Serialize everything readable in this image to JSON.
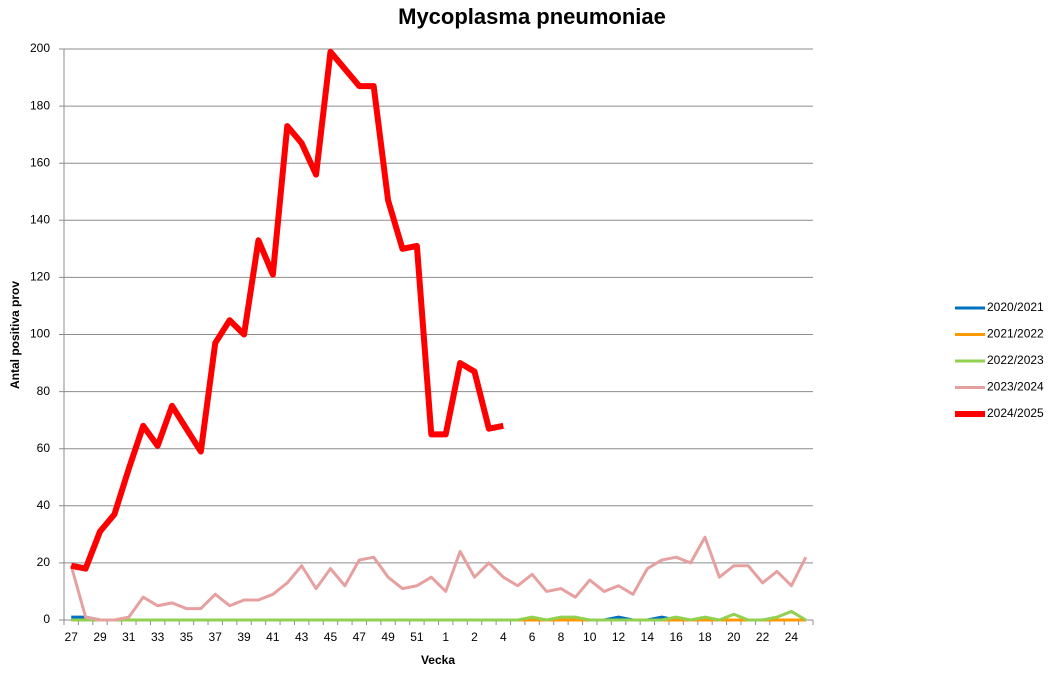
{
  "chart_data": {
    "type": "line",
    "title": "Mycoplasma pneumoniae",
    "x_label": "Vecka",
    "y_label": "Antal positiva prov",
    "categories": [
      27,
      null,
      29,
      null,
      31,
      null,
      33,
      null,
      35,
      null,
      37,
      null,
      39,
      null,
      41,
      null,
      43,
      null,
      45,
      null,
      47,
      null,
      49,
      null,
      51,
      null,
      1,
      null,
      2,
      null,
      4,
      null,
      6,
      null,
      8,
      null,
      10,
      null,
      12,
      null,
      14,
      null,
      16,
      null,
      18,
      null,
      20,
      null,
      22,
      null,
      24,
      null
    ],
    "ylim": [
      0,
      200
    ],
    "yticks": [
      0,
      20,
      40,
      60,
      80,
      100,
      120,
      140,
      160,
      180,
      200
    ],
    "grid": true,
    "legend": "right",
    "series": [
      {
        "name": "2020/2021",
        "color": "#0070c0",
        "width": 3,
        "values": [
          1,
          1,
          0,
          0,
          0,
          0,
          0,
          0,
          0,
          0,
          0,
          0,
          0,
          0,
          0,
          0,
          0,
          0,
          0,
          0,
          0,
          0,
          0,
          0,
          0,
          0,
          0,
          0,
          0,
          0,
          0,
          0,
          0,
          0,
          0,
          0,
          0,
          0,
          1,
          0,
          0,
          1,
          0,
          0,
          0,
          0,
          0,
          0,
          0,
          0,
          0,
          0
        ]
      },
      {
        "name": "2021/2022",
        "color": "#ff9900",
        "width": 3,
        "values": [
          0,
          0,
          0,
          0,
          0,
          0,
          0,
          0,
          0,
          0,
          0,
          0,
          0,
          0,
          0,
          0,
          0,
          0,
          0,
          0,
          0,
          0,
          0,
          0,
          0,
          0,
          0,
          0,
          0,
          0,
          0,
          0,
          0,
          0,
          0,
          0,
          0,
          0,
          0,
          0,
          0,
          0,
          0,
          0,
          0,
          0,
          0,
          0,
          0,
          0,
          0,
          0
        ]
      },
      {
        "name": "2022/2023",
        "color": "#92d050",
        "width": 3,
        "values": [
          0,
          0,
          0,
          0,
          0,
          0,
          0,
          0,
          0,
          0,
          0,
          0,
          0,
          0,
          0,
          0,
          0,
          0,
          0,
          0,
          0,
          0,
          0,
          0,
          0,
          0,
          0,
          0,
          0,
          0,
          0,
          0,
          1,
          0,
          1,
          1,
          0,
          0,
          0,
          0,
          0,
          0,
          1,
          0,
          1,
          0,
          2,
          0,
          0,
          1,
          3,
          0
        ]
      },
      {
        "name": "2023/2024",
        "color": "#e6a0a0",
        "width": 3,
        "values": [
          19,
          1,
          0,
          0,
          1,
          8,
          5,
          6,
          4,
          4,
          9,
          5,
          7,
          7,
          9,
          13,
          19,
          11,
          18,
          12,
          21,
          22,
          15,
          11,
          12,
          15,
          10,
          24,
          15,
          20,
          15,
          12,
          16,
          10,
          11,
          8,
          14,
          10,
          12,
          9,
          18,
          21,
          22,
          20,
          29,
          15,
          19,
          19,
          13,
          17,
          12,
          22
        ]
      },
      {
        "name": "2024/2025",
        "color": "#ff0000",
        "width": 6,
        "values": [
          19,
          18,
          31,
          37,
          53,
          68,
          61,
          75,
          67,
          59,
          97,
          105,
          100,
          133,
          121,
          173,
          167,
          156,
          199,
          193,
          187,
          187,
          147,
          130,
          131,
          65,
          65,
          90,
          87,
          67,
          68,
          null,
          null,
          null,
          null,
          null,
          null,
          null,
          null,
          null,
          null,
          null,
          null,
          null,
          null,
          null,
          null,
          null,
          null,
          null,
          null,
          null
        ]
      }
    ]
  }
}
